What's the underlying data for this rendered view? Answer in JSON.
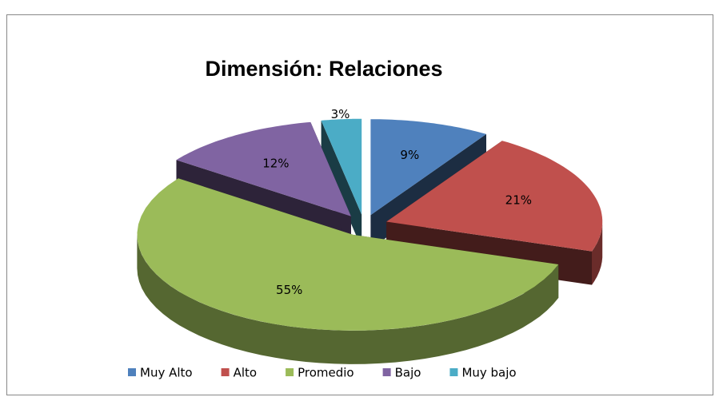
{
  "chart_data": {
    "type": "pie",
    "title": "Dimensión: Relaciones",
    "categories": [
      "Muy Alto",
      "Alto",
      "Promedio",
      "Bajo",
      "Muy bajo"
    ],
    "values": [
      9,
      21,
      55,
      12,
      3
    ],
    "value_labels": [
      "9%",
      "21%",
      "55%",
      "12%",
      "3%"
    ],
    "colors": [
      "#4f81bd",
      "#c0504d",
      "#9bbb59",
      "#8064a2",
      "#4bacc6"
    ],
    "legend": "bottom"
  }
}
